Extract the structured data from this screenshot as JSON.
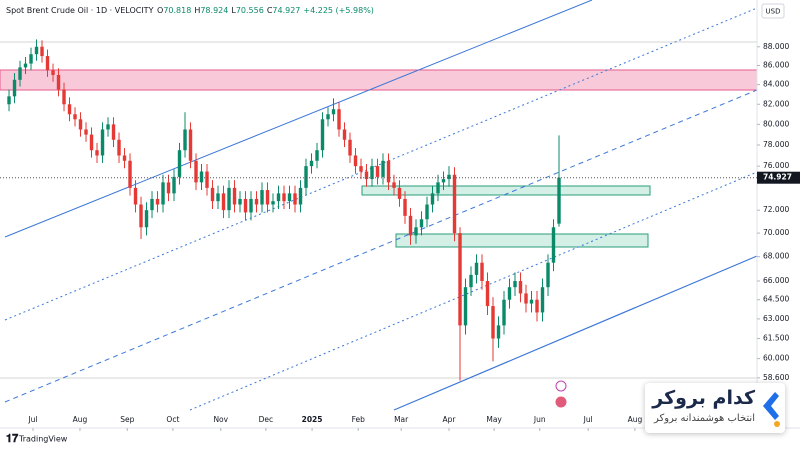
{
  "chart_data": {
    "type": "candlestick",
    "symbol": "Spot Brent Crude Oil · 1D · VELOCITY",
    "ohlc_labels": [
      "O",
      "H",
      "L",
      "C"
    ],
    "change": "+4.225 (+5.98%)",
    "currency": "USD",
    "up_color": "#0b8a6a",
    "down_color": "#e53935",
    "log_scale": true,
    "grid": false,
    "ylim": [
      55.1,
      93.2
    ],
    "yticks": [
      {
        "value": 88,
        "label": "88.000"
      },
      {
        "value": 86,
        "label": "86.000"
      },
      {
        "value": 84,
        "label": "84.000"
      },
      {
        "value": 82,
        "label": "82.000"
      },
      {
        "value": 80,
        "label": "80.000"
      },
      {
        "value": 78,
        "label": "78.000"
      },
      {
        "value": 76,
        "label": "76.000"
      },
      {
        "value": 72,
        "label": "72.000"
      },
      {
        "value": 70,
        "label": "70.000"
      },
      {
        "value": 68,
        "label": "68.000"
      },
      {
        "value": 66,
        "label": "66.000"
      },
      {
        "value": 64.5,
        "label": "64.500"
      },
      {
        "value": 63,
        "label": "63.000"
      },
      {
        "value": 61.5,
        "label": "61.500"
      },
      {
        "value": 60,
        "label": "60.000"
      },
      {
        "value": 58.6,
        "label": "58.600"
      }
    ],
    "xlim": [
      -1.64,
      136
    ],
    "xticks": [
      {
        "value": 4.36,
        "label": "Jul"
      },
      {
        "value": 12.9,
        "label": "Aug"
      },
      {
        "value": 21.5,
        "label": "Sep"
      },
      {
        "value": 29.8,
        "label": "Oct"
      },
      {
        "value": 38.5,
        "label": "Nov"
      },
      {
        "value": 46.7,
        "label": "Dec"
      },
      {
        "value": 55.1,
        "label": "2025"
      },
      {
        "value": 63.5,
        "label": "Feb"
      },
      {
        "value": 71.3,
        "label": "Mar"
      },
      {
        "value": 80,
        "label": "Apr"
      },
      {
        "value": 88.2,
        "label": "May"
      },
      {
        "value": 96.5,
        "label": "Jun"
      },
      {
        "value": 105.3,
        "label": "Jul"
      },
      {
        "value": 113.8,
        "label": "Aug"
      }
    ],
    "ohlc": [
      [
        82.0,
        83.5,
        81.3,
        82.8
      ],
      [
        82.8,
        85.2,
        82.1,
        84.5
      ],
      [
        84.5,
        86.5,
        83.8,
        85.8
      ],
      [
        85.8,
        86.9,
        85.1,
        86.2
      ],
      [
        86.2,
        87.9,
        85.5,
        87.2
      ],
      [
        87.2,
        88.8,
        86.5,
        88.0
      ],
      [
        88.0,
        88.7,
        86.3,
        87.0
      ],
      [
        87.0,
        87.7,
        84.8,
        85.5
      ],
      [
        85.5,
        86.2,
        84.3,
        85.0
      ],
      [
        85.0,
        85.7,
        82.8,
        83.5
      ],
      [
        83.5,
        84.2,
        81.3,
        82.0
      ],
      [
        82.0,
        82.7,
        80.3,
        81.0
      ],
      [
        81.0,
        81.7,
        79.8,
        80.5
      ],
      [
        80.5,
        81.2,
        78.8,
        79.5
      ],
      [
        79.5,
        80.2,
        78.3,
        79.0
      ],
      [
        79.0,
        79.7,
        76.8,
        77.5
      ],
      [
        77.5,
        78.2,
        76.3,
        77.0
      ],
      [
        77.0,
        80.2,
        76.3,
        79.5
      ],
      [
        79.5,
        80.7,
        78.8,
        80.0
      ],
      [
        80.0,
        80.7,
        77.8,
        78.5
      ],
      [
        78.5,
        79.2,
        76.3,
        77.0
      ],
      [
        77.0,
        77.7,
        75.8,
        76.5
      ],
      [
        76.5,
        77.2,
        73.3,
        74.0
      ],
      [
        74.0,
        74.7,
        71.8,
        72.5
      ],
      [
        72.5,
        73.2,
        69.5,
        70.5
      ],
      [
        70.5,
        72.7,
        69.8,
        72.0
      ],
      [
        72.0,
        73.7,
        71.3,
        73.0
      ],
      [
        73.0,
        73.7,
        71.8,
        72.5
      ],
      [
        72.5,
        75.2,
        71.8,
        74.5
      ],
      [
        74.5,
        75.2,
        72.8,
        73.5
      ],
      [
        73.5,
        75.7,
        72.8,
        75.0
      ],
      [
        75.0,
        78.2,
        74.3,
        77.5
      ],
      [
        77.5,
        81.2,
        76.8,
        79.5
      ],
      [
        79.5,
        80.2,
        75.8,
        76.5
      ],
      [
        76.5,
        77.2,
        73.8,
        74.5
      ],
      [
        74.5,
        76.2,
        73.8,
        75.5
      ],
      [
        75.5,
        76.2,
        73.3,
        74.0
      ],
      [
        74.0,
        74.7,
        72.1,
        72.8
      ],
      [
        72.8,
        74.2,
        72.1,
        73.5
      ],
      [
        73.5,
        74.2,
        71.3,
        72.0
      ],
      [
        72.0,
        74.7,
        71.3,
        74.0
      ],
      [
        74.0,
        74.7,
        71.8,
        72.5
      ],
      [
        72.5,
        73.7,
        71.8,
        73.0
      ],
      [
        73.0,
        73.7,
        71.1,
        71.8
      ],
      [
        71.8,
        73.7,
        71.1,
        73.0
      ],
      [
        73.0,
        73.7,
        71.8,
        72.5
      ],
      [
        72.5,
        74.5,
        71.8,
        73.8
      ],
      [
        73.8,
        74.5,
        71.8,
        72.5
      ],
      [
        72.5,
        73.5,
        71.8,
        72.8
      ],
      [
        72.8,
        74.2,
        72.1,
        73.5
      ],
      [
        73.5,
        74.2,
        72.1,
        72.8
      ],
      [
        72.8,
        74.2,
        72.1,
        73.5
      ],
      [
        73.5,
        74.2,
        71.8,
        72.5
      ],
      [
        72.5,
        74.7,
        71.8,
        74.0
      ],
      [
        74.0,
        76.7,
        73.3,
        76.0
      ],
      [
        76.0,
        77.2,
        75.3,
        76.5
      ],
      [
        76.5,
        78.2,
        75.8,
        77.5
      ],
      [
        77.5,
        81.2,
        76.8,
        80.5
      ],
      [
        80.5,
        81.7,
        79.8,
        81.0
      ],
      [
        81.0,
        82.6,
        80.3,
        81.5
      ],
      [
        81.5,
        82.2,
        78.8,
        79.5
      ],
      [
        79.5,
        80.2,
        77.8,
        78.5
      ],
      [
        78.5,
        79.2,
        76.3,
        77.0
      ],
      [
        77.0,
        77.7,
        75.3,
        76.0
      ],
      [
        76.0,
        76.7,
        74.8,
        75.5
      ],
      [
        75.5,
        76.2,
        74.1,
        74.8
      ],
      [
        74.8,
        76.7,
        74.1,
        76.0
      ],
      [
        76.0,
        76.7,
        74.3,
        75.0
      ],
      [
        75.0,
        77.2,
        74.3,
        76.5
      ],
      [
        76.5,
        77.2,
        73.8,
        74.5
      ],
      [
        74.5,
        75.2,
        73.3,
        74.0
      ],
      [
        74.0,
        74.7,
        72.3,
        73.0
      ],
      [
        73.0,
        73.7,
        70.8,
        71.5
      ],
      [
        71.5,
        72.2,
        69.0,
        69.8
      ],
      [
        69.8,
        71.2,
        69.1,
        70.5
      ],
      [
        70.5,
        71.9,
        69.8,
        71.2
      ],
      [
        71.2,
        73.2,
        70.5,
        72.5
      ],
      [
        72.5,
        74.2,
        71.8,
        73.5
      ],
      [
        73.5,
        75.2,
        72.8,
        74.5
      ],
      [
        74.5,
        75.5,
        73.8,
        74.8
      ],
      [
        74.8,
        76.0,
        74.1,
        75.2
      ],
      [
        75.2,
        75.9,
        69.3,
        70.0
      ],
      [
        70.0,
        70.5,
        58.4,
        62.5
      ],
      [
        62.5,
        66.2,
        61.8,
        65.5
      ],
      [
        65.5,
        67.2,
        64.8,
        66.5
      ],
      [
        66.5,
        68.2,
        65.8,
        67.5
      ],
      [
        67.5,
        68.2,
        65.3,
        66.0
      ],
      [
        66.0,
        66.7,
        63.3,
        64.0
      ],
      [
        64.0,
        64.7,
        59.8,
        61.5
      ],
      [
        61.5,
        63.2,
        60.8,
        62.5
      ],
      [
        62.5,
        65.2,
        61.8,
        64.5
      ],
      [
        64.5,
        66.2,
        63.8,
        65.5
      ],
      [
        65.5,
        66.7,
        64.8,
        66.0
      ],
      [
        66.0,
        66.7,
        64.3,
        65.0
      ],
      [
        65.0,
        65.7,
        63.5,
        64.2
      ],
      [
        64.2,
        65.2,
        63.5,
        64.5
      ],
      [
        64.5,
        65.2,
        62.8,
        63.5
      ],
      [
        63.5,
        66.2,
        62.8,
        65.5
      ],
      [
        65.5,
        68.2,
        64.8,
        67.5
      ],
      [
        67.5,
        71.2,
        66.8,
        70.5
      ],
      [
        70.818,
        78.924,
        70.556,
        74.927
      ]
    ]
  },
  "branding": {
    "platform": "TradingView",
    "watermark_title": "کدام بروکر",
    "watermark_subtitle": "انتخاب هوشمندانه بروکر"
  }
}
